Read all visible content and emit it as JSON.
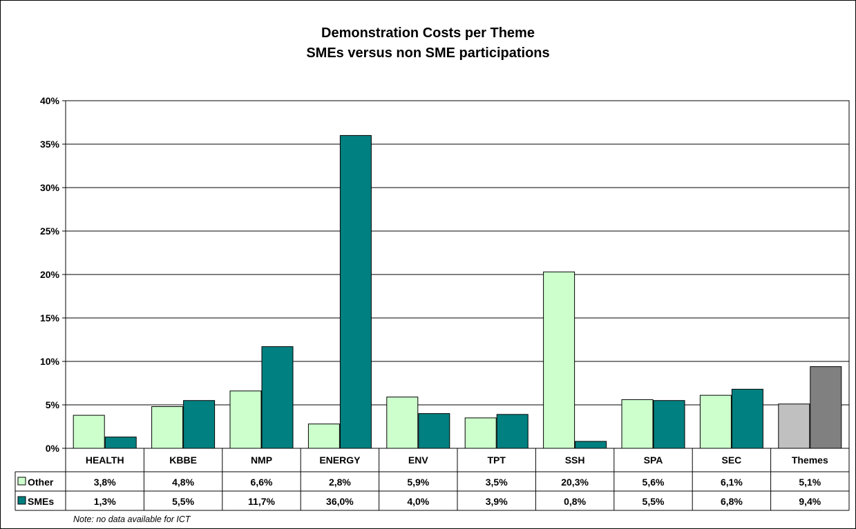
{
  "chart_data": {
    "type": "bar",
    "title": "Demonstration Costs per Theme",
    "subtitle": "SMEs versus non SME participations",
    "categories": [
      "HEALTH",
      "KBBE",
      "NMP",
      "ENERGY",
      "ENV",
      "TPT",
      "SSH",
      "SPA",
      "SEC",
      "Themes"
    ],
    "series": [
      {
        "name": "Other",
        "values": [
          3.8,
          4.8,
          6.6,
          2.8,
          5.9,
          3.5,
          20.3,
          5.6,
          6.1,
          5.1
        ],
        "labels": [
          "3,8%",
          "4,8%",
          "6,6%",
          "2,8%",
          "5,9%",
          "3,5%",
          "20,3%",
          "5,6%",
          "6,1%",
          "5,1%"
        ],
        "color": "#CCFFCC",
        "highlight_color": "#C0C0C0"
      },
      {
        "name": "SMEs",
        "values": [
          1.3,
          5.5,
          11.7,
          36.0,
          4.0,
          3.9,
          0.8,
          5.5,
          6.8,
          9.4
        ],
        "labels": [
          "1,3%",
          "5,5%",
          "11,7%",
          "36,0%",
          "4,0%",
          "3,9%",
          "0,8%",
          "5,5%",
          "6,8%",
          "9,4%"
        ],
        "color": "#008080",
        "highlight_color": "#808080"
      }
    ],
    "highlight_category": "Themes",
    "ylim": [
      0,
      40
    ],
    "yticks": [
      "0%",
      "5%",
      "10%",
      "15%",
      "20%",
      "25%",
      "30%",
      "35%",
      "40%"
    ],
    "grid": true,
    "legend": "data-table",
    "note": "Note: no data available for ICT"
  }
}
